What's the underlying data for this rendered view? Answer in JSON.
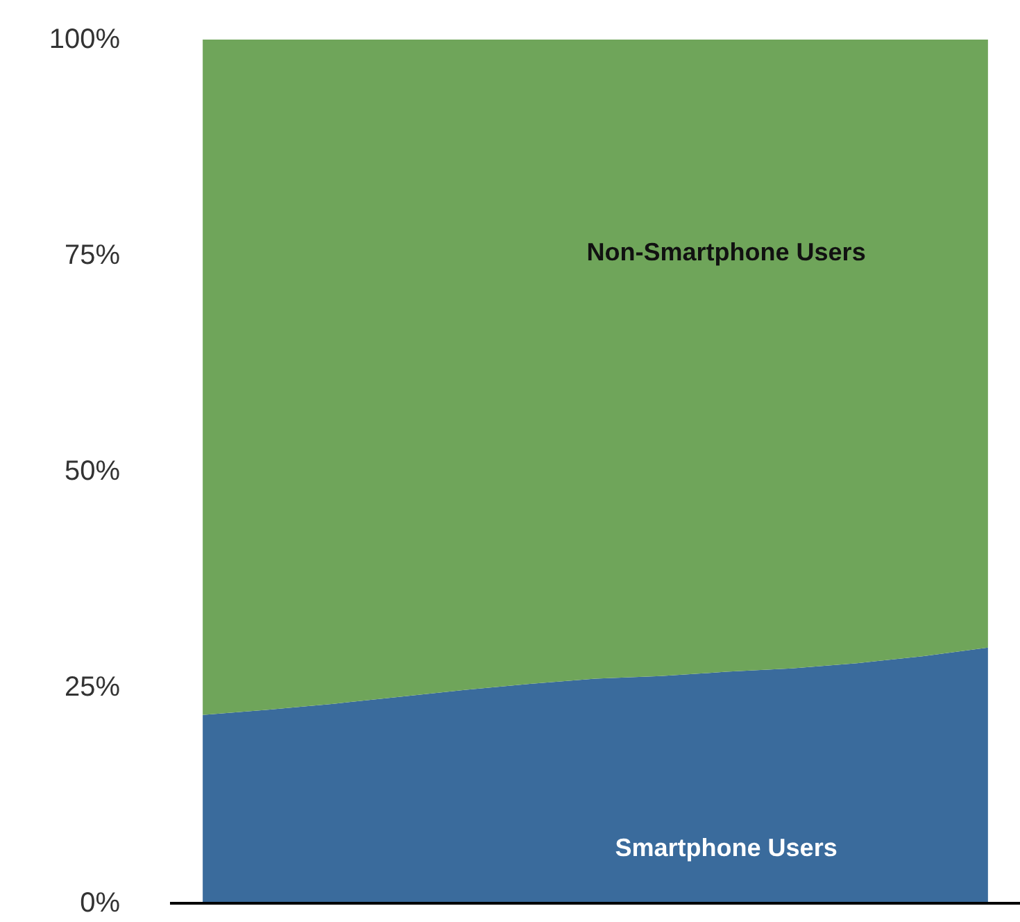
{
  "chart_data": {
    "type": "area",
    "stacked": true,
    "categories": [
      null,
      null,
      null,
      null,
      null,
      null,
      null,
      null,
      null,
      null,
      null,
      null,
      null
    ],
    "series": [
      {
        "name": "Smartphone Users",
        "color": "#3a6b9c",
        "values": [
          21.8,
          22.4,
          23.1,
          23.9,
          24.7,
          25.4,
          26.0,
          26.3,
          26.8,
          27.2,
          27.8,
          28.6,
          29.6
        ]
      },
      {
        "name": "Non-Smartphone Users",
        "color": "#6fa55a",
        "values": [
          78.2,
          77.6,
          76.9,
          76.1,
          75.3,
          74.6,
          74.0,
          73.7,
          73.2,
          72.8,
          72.2,
          71.4,
          70.4
        ]
      }
    ],
    "ylim": [
      0,
      100
    ],
    "yticks": [
      {
        "value": 0,
        "label": "0%"
      },
      {
        "value": 25,
        "label": "25%"
      },
      {
        "value": 50,
        "label": "50%"
      },
      {
        "value": 75,
        "label": "75%"
      },
      {
        "value": 100,
        "label": "100%"
      }
    ],
    "grid": false,
    "legend": false
  }
}
